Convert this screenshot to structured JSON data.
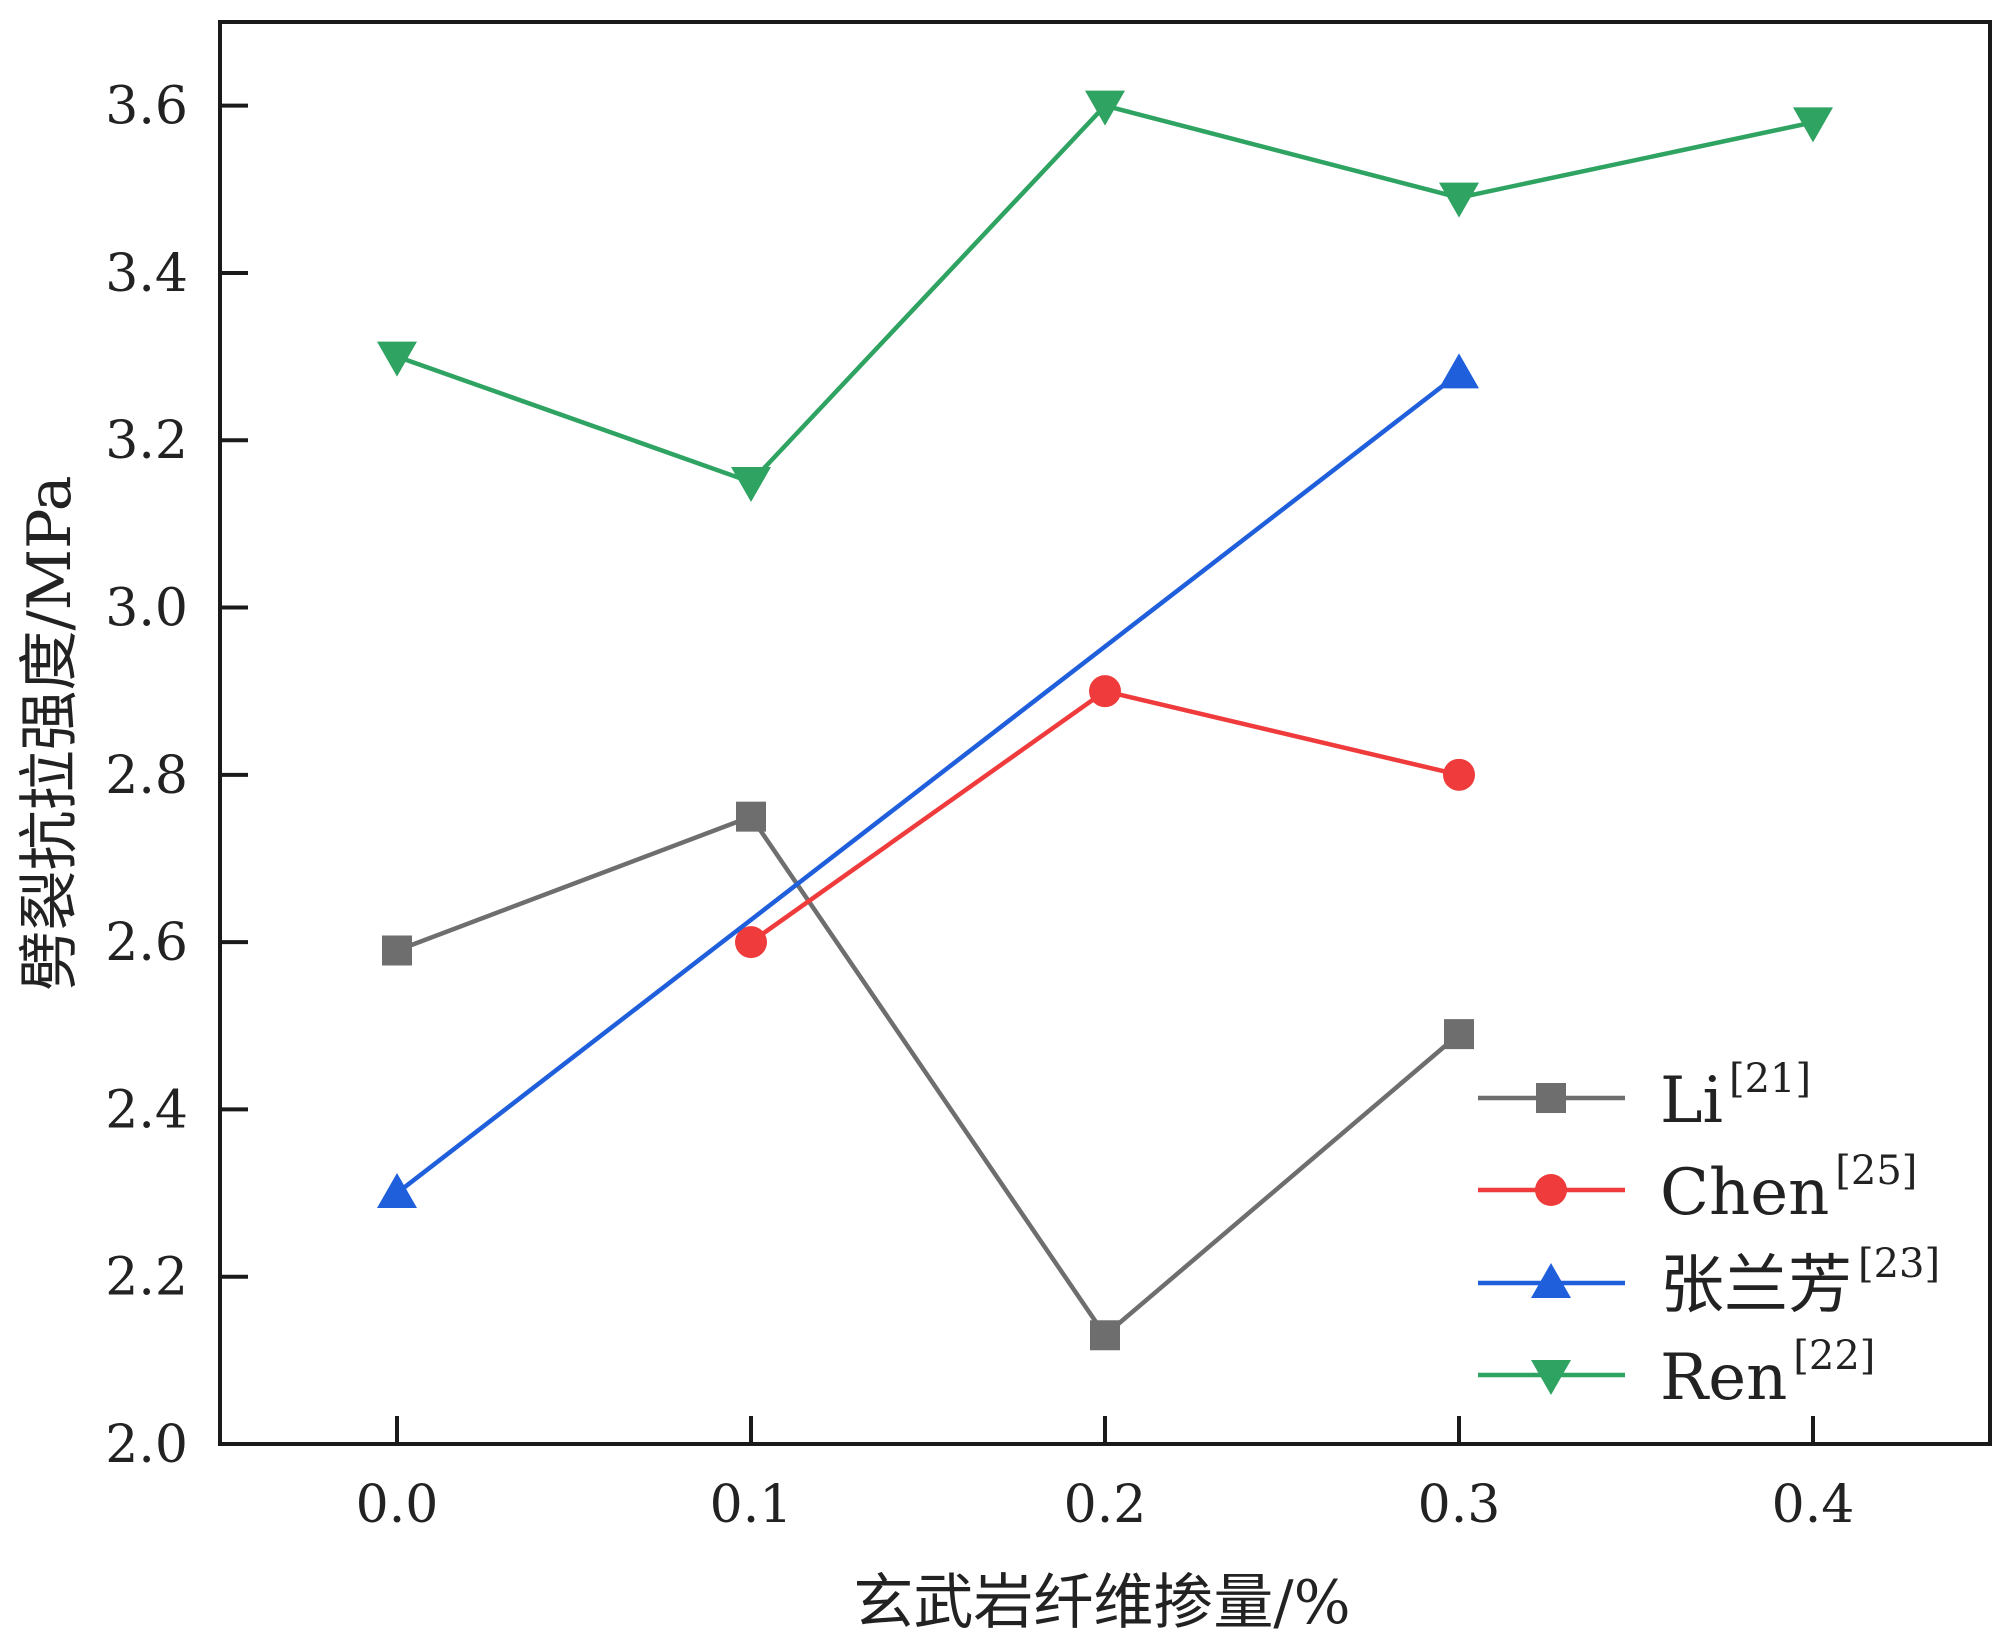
{
  "chart_data": {
    "type": "line",
    "title": "",
    "xlabel": "玄武岩纤维掺量/%",
    "ylabel": "劈裂抗拉强度/MPa",
    "xlim": [
      -0.05,
      0.45
    ],
    "ylim": [
      2.0,
      3.7
    ],
    "xticks": [
      0.0,
      0.1,
      0.2,
      0.3,
      0.4
    ],
    "xtick_labels": [
      "0.0",
      "0.1",
      "0.2",
      "0.3",
      "0.4"
    ],
    "yticks": [
      2.0,
      2.2,
      2.4,
      2.6,
      2.8,
      3.0,
      3.2,
      3.4,
      3.6
    ],
    "ytick_labels": [
      "2.0",
      "2.2",
      "2.4",
      "2.6",
      "2.8",
      "3.0",
      "3.2",
      "3.4",
      "3.6"
    ],
    "grid": false,
    "legend_position": "bottom-right",
    "series": [
      {
        "name": "Li",
        "ref": "[21]",
        "color": "#6e6e6e",
        "marker": "square",
        "x": [
          0.0,
          0.1,
          0.2,
          0.3
        ],
        "y": [
          2.59,
          2.75,
          2.13,
          2.49
        ]
      },
      {
        "name": "Chen",
        "ref": "[25]",
        "color": "#ef3b3b",
        "marker": "circle",
        "x": [
          0.1,
          0.2,
          0.3
        ],
        "y": [
          2.6,
          2.9,
          2.8
        ]
      },
      {
        "name": "张兰芳",
        "ref": "[23]",
        "color": "#1f5fdc",
        "marker": "triangle-up",
        "x": [
          0.0,
          0.3
        ],
        "y": [
          2.3,
          3.28
        ]
      },
      {
        "name": "Ren",
        "ref": "[22]",
        "color": "#2fa362",
        "marker": "triangle-down",
        "x": [
          0.0,
          0.1,
          0.2,
          0.3,
          0.4
        ],
        "y": [
          3.3,
          3.15,
          3.6,
          3.49,
          3.58
        ]
      }
    ]
  }
}
